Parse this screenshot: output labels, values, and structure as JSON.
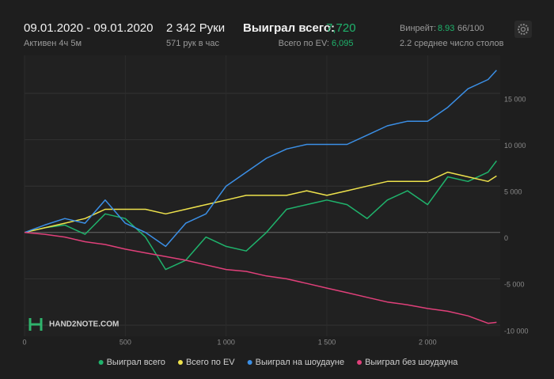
{
  "header": {
    "date_range": "09.01.2020 - 09.01.2020",
    "active": "Активен 4ч 5м",
    "hands": "2 342 Руки",
    "hands_per_hour": "571 рук в час",
    "won_label": "Выиграл всего:",
    "won_value": "7,720",
    "ev_label": "Всего по EV:",
    "ev_value": "6,095",
    "winrate_label": "Винрейт:",
    "winrate_value": "8.93",
    "winrate_extra": "66/100",
    "tables": "2.2 среднее число столов",
    "watermark": "HAND2NOTE.COM"
  },
  "chart_data": {
    "type": "line",
    "grid": true,
    "legend": "bottom",
    "x": [
      0,
      100,
      200,
      300,
      400,
      500,
      600,
      700,
      800,
      900,
      1000,
      1100,
      1200,
      1300,
      1400,
      1500,
      1600,
      1700,
      1800,
      1900,
      2000,
      2100,
      2200,
      2300,
      2342
    ],
    "xlim": [
      0,
      2360
    ],
    "xticks": [
      0,
      500,
      {
        "value": 1000,
        "label": "1 000"
      },
      {
        "value": 1500,
        "label": "1 500"
      },
      {
        "value": 2000,
        "label": "2 000"
      }
    ],
    "ylim": [
      -11200,
      19100
    ],
    "yticks": [
      {
        "value": -10000,
        "label": "-10 000"
      },
      {
        "value": -5000,
        "label": "-5 000"
      },
      0,
      {
        "value": 5000,
        "label": "5 000"
      },
      {
        "value": 10000,
        "label": "10 000"
      },
      {
        "value": 15000,
        "label": "15 000"
      }
    ],
    "series": [
      {
        "name": "Выиграл всего",
        "color": "#1fb36c",
        "values": [
          0,
          500,
          800,
          -200,
          2000,
          1500,
          -500,
          -4000,
          -3000,
          -500,
          -1500,
          -2000,
          0,
          2500,
          3000,
          3500,
          3000,
          1500,
          3500,
          4500,
          3000,
          6000,
          5500,
          6500,
          7720
        ]
      },
      {
        "name": "Всего по EV",
        "color": "#eee24c",
        "values": [
          0,
          500,
          1000,
          1500,
          2500,
          2500,
          2500,
          2000,
          2500,
          3000,
          3500,
          4000,
          4000,
          4000,
          4500,
          4000,
          4500,
          5000,
          5500,
          5500,
          5500,
          6500,
          6000,
          5500,
          6095
        ]
      },
      {
        "name": "Выиграл на шоудауне",
        "color": "#3b8fe6",
        "values": [
          0,
          800,
          1500,
          1000,
          3500,
          1000,
          0,
          -1500,
          1000,
          2000,
          5000,
          6500,
          8000,
          9000,
          9500,
          9500,
          9500,
          10500,
          11500,
          12000,
          12000,
          13500,
          15500,
          16500,
          17500
        ]
      },
      {
        "name": "Выиграл без шоудауна",
        "color": "#e0407a",
        "values": [
          0,
          -200,
          -500,
          -1000,
          -1300,
          -1800,
          -2200,
          -2600,
          -3000,
          -3500,
          -4000,
          -4200,
          -4700,
          -5000,
          -5500,
          -6000,
          -6500,
          -7000,
          -7500,
          -7800,
          -8200,
          -8500,
          -9000,
          -9800,
          -9700
        ]
      }
    ]
  }
}
